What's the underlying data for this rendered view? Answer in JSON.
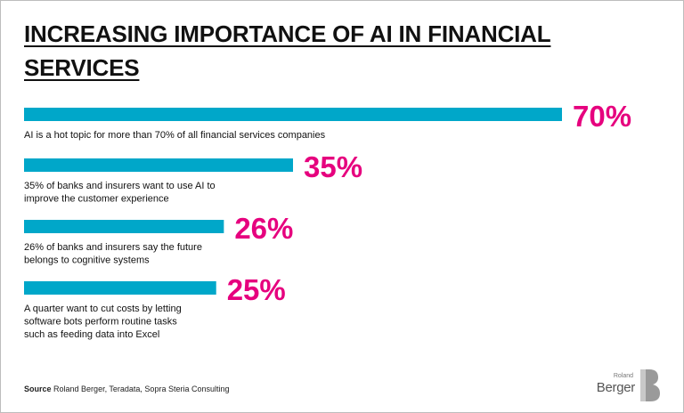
{
  "title_lines": [
    "INCREASING IMPORTANCE OF AI IN FINANCIAL",
    "SERVICES"
  ],
  "colors": {
    "bar": "#00a7c9",
    "value": "#e6007e",
    "text": "#111111"
  },
  "chart_data": {
    "type": "bar",
    "orientation": "horizontal",
    "title": "INCREASING IMPORTANCE OF AI IN FINANCIAL SERVICES",
    "unit": "%",
    "xlim": [
      0,
      70
    ],
    "grid": false,
    "categories": [
      [
        "AI is a hot topic for more than 70% of all financial services companies"
      ],
      [
        "35% of banks and insurers want to use AI to",
        "improve the customer experience"
      ],
      [
        "26% of banks and insurers say the future",
        "belongs to cognitive systems"
      ],
      [
        "A quarter want to cut costs by letting",
        "software bots perform routine tasks",
        "such as feeding data into Excel"
      ]
    ],
    "values": [
      70,
      35,
      26,
      25
    ],
    "value_labels": [
      "70%",
      "35%",
      "26%",
      "25%"
    ]
  },
  "source": {
    "label": "Source",
    "text": "Roland Berger, Teradata, Sopra Steria Consulting"
  },
  "logo": {
    "top": "Roland",
    "bottom": "Berger",
    "name": "roland-berger-logo"
  }
}
